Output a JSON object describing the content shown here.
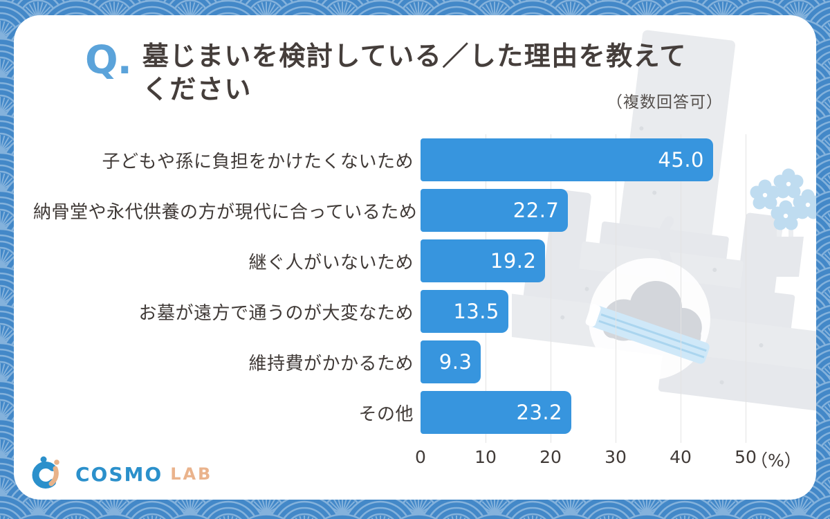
{
  "question": {
    "q_prefix": "Q.",
    "title_lines": [
      "墓じまいを検討している／した理由を教えて",
      "ください"
    ],
    "title_full": "墓じまいを検討している／した理由を教えてください",
    "note": "（複数回答可）"
  },
  "chart_data": {
    "type": "bar",
    "orientation": "horizontal",
    "categories": [
      "子どもや孫に負担をかけたくないため",
      "納骨堂や永代供養の方が現代に合っているため",
      "継ぐ人がいないため",
      "お墓が遠方で通うのが大変なため",
      "維持費がかかるため",
      "その他"
    ],
    "values": [
      45.0,
      22.7,
      19.2,
      13.5,
      9.3,
      23.2
    ],
    "value_labels": [
      "45.0",
      "22.7",
      "19.2",
      "13.5",
      "9.3",
      "23.2"
    ],
    "xlim": [
      0,
      50
    ],
    "x_ticks": [
      "0",
      "10",
      "20",
      "30",
      "40",
      "50"
    ],
    "x_unit": "（%）",
    "grid": true,
    "legend": false,
    "bar_color": "#3795de"
  },
  "footer": {
    "logo_text_1": "COSMO",
    "logo_text_2": "LAB"
  },
  "icons": {
    "logo_mark": "cosmo-lab-alpha-mark",
    "background": "seigaiha-wave-pattern",
    "watermark": "grave-and-flowers-illustration"
  },
  "colors": {
    "bar_blue": "#3795de",
    "q_blue": "#5ba3da",
    "border_blue": "#4388c8",
    "pattern_line_blue": "#84b2dc",
    "text_dark": "#453e3b",
    "grid_gray": "#e3e3e3",
    "stone_gray": "#e9ebee",
    "cloud_gray": "#d3d6db",
    "flower_blue": "#bfdcf0",
    "incense_blue": "#cfe8f8",
    "logo_blue": "#2b90cb",
    "logo_peach": "#eab38c"
  }
}
